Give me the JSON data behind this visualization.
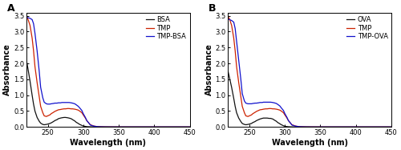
{
  "panel_a": {
    "label": "A",
    "xlabel": "Wavelength (nm)",
    "ylabel": "Absorbance",
    "xlim": [
      220,
      450
    ],
    "ylim": [
      0,
      3.6
    ],
    "xticks": [
      250,
      300,
      350,
      400,
      450
    ],
    "yticks": [
      0.0,
      0.5,
      1.0,
      1.5,
      2.0,
      2.5,
      3.0,
      3.5
    ],
    "legend": [
      "BSA",
      "TMP",
      "TMP-BSA"
    ],
    "colors": [
      "#111111",
      "#cc2200",
      "#1111cc"
    ],
    "series": {
      "BSA": {
        "x": [
          220,
          222,
          225,
          228,
          230,
          232,
          235,
          238,
          240,
          243,
          245,
          248,
          250,
          253,
          255,
          258,
          260,
          263,
          265,
          268,
          270,
          273,
          275,
          278,
          280,
          283,
          285,
          288,
          290,
          293,
          295,
          298,
          300,
          305,
          310,
          320,
          330,
          350,
          400,
          450
        ],
        "y": [
          2.1,
          1.85,
          1.45,
          1.0,
          0.72,
          0.5,
          0.3,
          0.18,
          0.12,
          0.08,
          0.07,
          0.08,
          0.09,
          0.11,
          0.13,
          0.17,
          0.2,
          0.23,
          0.26,
          0.28,
          0.29,
          0.3,
          0.3,
          0.29,
          0.28,
          0.26,
          0.23,
          0.19,
          0.15,
          0.11,
          0.08,
          0.05,
          0.03,
          0.01,
          0.005,
          0.002,
          0.0,
          0.0,
          0.0,
          0.0
        ]
      },
      "TMP": {
        "x": [
          220,
          222,
          225,
          228,
          230,
          232,
          235,
          238,
          240,
          243,
          245,
          248,
          250,
          253,
          255,
          258,
          260,
          263,
          265,
          268,
          270,
          273,
          275,
          278,
          280,
          283,
          285,
          288,
          290,
          293,
          295,
          298,
          300,
          303,
          305,
          308,
          310,
          315,
          320,
          330,
          340,
          360,
          400,
          450
        ],
        "y": [
          3.48,
          3.4,
          3.2,
          2.8,
          2.4,
          1.9,
          1.4,
          0.95,
          0.65,
          0.45,
          0.35,
          0.33,
          0.35,
          0.38,
          0.42,
          0.46,
          0.49,
          0.52,
          0.54,
          0.55,
          0.56,
          0.57,
          0.57,
          0.58,
          0.58,
          0.57,
          0.57,
          0.56,
          0.55,
          0.53,
          0.5,
          0.45,
          0.38,
          0.28,
          0.2,
          0.12,
          0.07,
          0.03,
          0.01,
          0.003,
          0.001,
          0.0,
          0.0,
          0.0
        ]
      },
      "TMP-BSA": {
        "x": [
          220,
          222,
          225,
          228,
          230,
          232,
          235,
          238,
          240,
          243,
          245,
          248,
          250,
          253,
          255,
          258,
          260,
          263,
          265,
          268,
          270,
          273,
          275,
          278,
          280,
          283,
          285,
          288,
          290,
          293,
          295,
          298,
          300,
          303,
          305,
          308,
          310,
          315,
          320,
          325,
          330,
          340,
          360,
          400,
          450
        ],
        "y": [
          3.45,
          3.44,
          3.42,
          3.38,
          3.25,
          2.95,
          2.4,
          1.75,
          1.25,
          0.92,
          0.78,
          0.73,
          0.72,
          0.72,
          0.73,
          0.74,
          0.75,
          0.75,
          0.76,
          0.76,
          0.77,
          0.77,
          0.77,
          0.77,
          0.77,
          0.76,
          0.75,
          0.73,
          0.7,
          0.65,
          0.6,
          0.52,
          0.42,
          0.3,
          0.2,
          0.12,
          0.06,
          0.025,
          0.01,
          0.005,
          0.002,
          0.0,
          0.0,
          0.0,
          0.0
        ]
      }
    }
  },
  "panel_b": {
    "label": "B",
    "xlabel": "Wavelength (nm)",
    "ylabel": "Absorbance",
    "xlim": [
      220,
      450
    ],
    "ylim": [
      0,
      3.6
    ],
    "xticks": [
      250,
      300,
      350,
      400,
      450
    ],
    "yticks": [
      0.0,
      0.5,
      1.0,
      1.5,
      2.0,
      2.5,
      3.0,
      3.5
    ],
    "legend": [
      "OVA",
      "TMP",
      "TMP-OVA"
    ],
    "colors": [
      "#111111",
      "#cc2200",
      "#1111cc"
    ],
    "series": {
      "OVA": {
        "x": [
          220,
          222,
          225,
          228,
          230,
          232,
          235,
          238,
          240,
          243,
          245,
          248,
          250,
          253,
          255,
          258,
          260,
          263,
          265,
          268,
          270,
          273,
          275,
          278,
          280,
          283,
          285,
          288,
          290,
          293,
          295,
          298,
          300,
          305,
          310,
          320,
          330,
          360,
          400,
          450
        ],
        "y": [
          1.75,
          1.55,
          1.25,
          0.9,
          0.65,
          0.45,
          0.28,
          0.17,
          0.11,
          0.08,
          0.07,
          0.08,
          0.09,
          0.11,
          0.14,
          0.17,
          0.2,
          0.23,
          0.25,
          0.27,
          0.28,
          0.28,
          0.28,
          0.27,
          0.27,
          0.25,
          0.22,
          0.18,
          0.14,
          0.1,
          0.07,
          0.04,
          0.02,
          0.007,
          0.003,
          0.001,
          0.0,
          0.0,
          0.0,
          0.0
        ]
      },
      "TMP": {
        "x": [
          220,
          222,
          225,
          228,
          230,
          232,
          235,
          238,
          240,
          243,
          245,
          248,
          250,
          253,
          255,
          258,
          260,
          263,
          265,
          268,
          270,
          273,
          275,
          278,
          280,
          283,
          285,
          288,
          290,
          293,
          295,
          298,
          300,
          303,
          305,
          308,
          310,
          315,
          320,
          330,
          340,
          360,
          400,
          450
        ],
        "y": [
          3.48,
          3.4,
          3.2,
          2.8,
          2.4,
          1.9,
          1.4,
          0.95,
          0.65,
          0.45,
          0.35,
          0.33,
          0.35,
          0.38,
          0.42,
          0.46,
          0.49,
          0.52,
          0.54,
          0.55,
          0.56,
          0.57,
          0.57,
          0.58,
          0.58,
          0.57,
          0.57,
          0.56,
          0.55,
          0.53,
          0.5,
          0.45,
          0.38,
          0.28,
          0.2,
          0.12,
          0.07,
          0.03,
          0.01,
          0.003,
          0.001,
          0.0,
          0.0,
          0.0
        ]
      },
      "TMP-OVA": {
        "x": [
          220,
          222,
          225,
          228,
          230,
          232,
          235,
          238,
          240,
          243,
          245,
          248,
          250,
          253,
          255,
          258,
          260,
          263,
          265,
          268,
          270,
          273,
          275,
          278,
          280,
          283,
          285,
          288,
          290,
          293,
          295,
          298,
          300,
          303,
          305,
          308,
          310,
          315,
          320,
          325,
          330,
          340,
          360,
          400,
          450
        ],
        "y": [
          3.4,
          3.38,
          3.35,
          3.3,
          3.1,
          2.7,
          2.1,
          1.5,
          1.05,
          0.82,
          0.75,
          0.73,
          0.73,
          0.73,
          0.74,
          0.75,
          0.75,
          0.76,
          0.77,
          0.77,
          0.78,
          0.78,
          0.78,
          0.78,
          0.78,
          0.77,
          0.76,
          0.74,
          0.71,
          0.66,
          0.6,
          0.52,
          0.42,
          0.3,
          0.2,
          0.12,
          0.06,
          0.025,
          0.01,
          0.005,
          0.002,
          0.0,
          0.0,
          0.0,
          0.0
        ]
      }
    }
  },
  "fig_width": 5.0,
  "fig_height": 1.87,
  "dpi": 100,
  "font_family": "DejaVu Sans",
  "tick_fontsize": 6,
  "label_fontsize": 7,
  "legend_fontsize": 6,
  "linewidth": 0.9
}
